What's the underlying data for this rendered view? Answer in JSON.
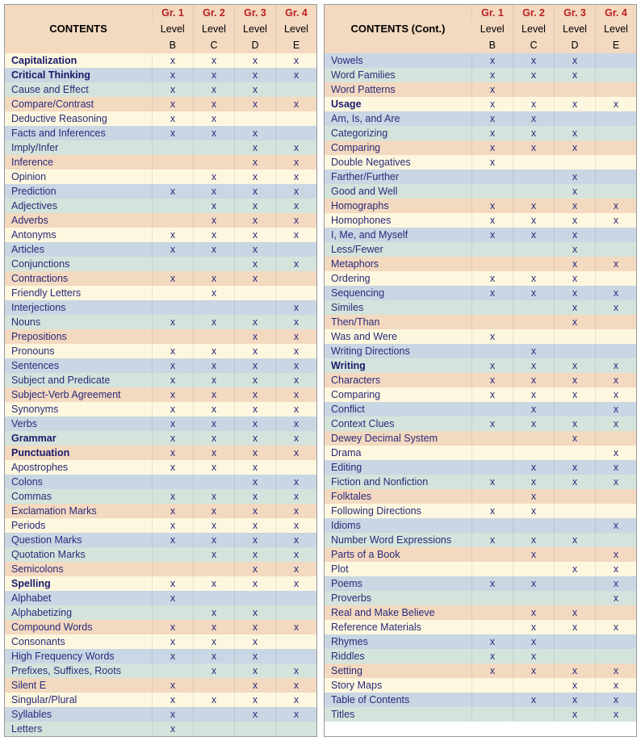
{
  "colors": {
    "header_bg": "#f3d9c0",
    "stripes": [
      "#fdf7df",
      "#c9d6e3",
      "#d4e4dc",
      "#f3d9c0"
    ],
    "text": "#2a2a7a",
    "gr_text": "#b82020"
  },
  "columns": [
    {
      "gr": "Gr. 1",
      "lvl_line1": "Level",
      "lvl_line2": "B"
    },
    {
      "gr": "Gr. 2",
      "lvl_line1": "Level",
      "lvl_line2": "C"
    },
    {
      "gr": "Gr. 3",
      "lvl_line1": "Level",
      "lvl_line2": "D"
    },
    {
      "gr": "Gr. 4",
      "lvl_line1": "Level",
      "lvl_line2": "E"
    }
  ],
  "title_left": "CONTENTS",
  "title_right": "CONTENTS  (Cont.)",
  "left": [
    {
      "label": "Capitalization",
      "bold": true,
      "marks": [
        "x",
        "x",
        "x",
        "x"
      ]
    },
    {
      "label": "Critical Thinking",
      "bold": true,
      "marks": [
        "x",
        "x",
        "x",
        "x"
      ]
    },
    {
      "label": "Cause and Effect",
      "marks": [
        "x",
        "x",
        "x",
        ""
      ]
    },
    {
      "label": "Compare/Contrast",
      "marks": [
        "x",
        "x",
        "x",
        "x"
      ]
    },
    {
      "label": "Deductive Reasoning",
      "marks": [
        "x",
        "x",
        "",
        ""
      ]
    },
    {
      "label": "Facts and Inferences",
      "marks": [
        "x",
        "x",
        "x",
        ""
      ]
    },
    {
      "label": "Imply/Infer",
      "marks": [
        "",
        "",
        "x",
        "x"
      ]
    },
    {
      "label": "Inference",
      "marks": [
        "",
        "",
        "x",
        "x"
      ]
    },
    {
      "label": "Opinion",
      "marks": [
        "",
        "x",
        "x",
        "x"
      ]
    },
    {
      "label": "Prediction",
      "marks": [
        "x",
        "x",
        "x",
        "x"
      ]
    },
    {
      "label": "Adjectives",
      "marks": [
        "",
        "x",
        "x",
        "x"
      ]
    },
    {
      "label": "Adverbs",
      "marks": [
        "",
        "x",
        "x",
        "x"
      ]
    },
    {
      "label": "Antonyms",
      "marks": [
        "x",
        "x",
        "x",
        "x"
      ]
    },
    {
      "label": "Articles",
      "marks": [
        "x",
        "x",
        "x",
        ""
      ]
    },
    {
      "label": "Conjunctions",
      "marks": [
        "",
        "",
        "x",
        "x"
      ]
    },
    {
      "label": "Contractions",
      "marks": [
        "x",
        "x",
        "x",
        ""
      ]
    },
    {
      "label": "Friendly Letters",
      "marks": [
        "",
        "x",
        "",
        ""
      ]
    },
    {
      "label": "Interjections",
      "marks": [
        "",
        "",
        "",
        "x"
      ]
    },
    {
      "label": "Nouns",
      "marks": [
        "x",
        "x",
        "x",
        "x"
      ]
    },
    {
      "label": "Prepositions",
      "marks": [
        "",
        "",
        "x",
        "x"
      ]
    },
    {
      "label": "Pronouns",
      "marks": [
        "x",
        "x",
        "x",
        "x"
      ]
    },
    {
      "label": "Sentences",
      "marks": [
        "x",
        "x",
        "x",
        "x"
      ]
    },
    {
      "label": "Subject and Predicate",
      "marks": [
        "x",
        "x",
        "x",
        "x"
      ]
    },
    {
      "label": "Subject-Verb Agreement",
      "marks": [
        "x",
        "x",
        "x",
        "x"
      ]
    },
    {
      "label": "Synonyms",
      "marks": [
        "x",
        "x",
        "x",
        "x"
      ]
    },
    {
      "label": "Verbs",
      "marks": [
        "x",
        "x",
        "x",
        "x"
      ]
    },
    {
      "label": "Grammar",
      "bold": true,
      "marks": [
        "x",
        "x",
        "x",
        "x"
      ]
    },
    {
      "label": "Punctuation",
      "bold": true,
      "marks": [
        "x",
        "x",
        "x",
        "x"
      ]
    },
    {
      "label": "Apostrophes",
      "marks": [
        "x",
        "x",
        "x",
        ""
      ]
    },
    {
      "label": "Colons",
      "marks": [
        "",
        "",
        "x",
        "x"
      ]
    },
    {
      "label": "Commas",
      "marks": [
        "x",
        "x",
        "x",
        "x"
      ]
    },
    {
      "label": "Exclamation Marks",
      "marks": [
        "x",
        "x",
        "x",
        "x"
      ]
    },
    {
      "label": "Periods",
      "marks": [
        "x",
        "x",
        "x",
        "x"
      ]
    },
    {
      "label": "Question Marks",
      "marks": [
        "x",
        "x",
        "x",
        "x"
      ]
    },
    {
      "label": "Quotation Marks",
      "marks": [
        "",
        "x",
        "x",
        "x"
      ]
    },
    {
      "label": "Semicolons",
      "marks": [
        "",
        "",
        "x",
        "x"
      ]
    },
    {
      "label": "Spelling",
      "bold": true,
      "marks": [
        "x",
        "x",
        "x",
        "x"
      ]
    },
    {
      "label": "Alphabet",
      "marks": [
        "x",
        "",
        "",
        ""
      ]
    },
    {
      "label": "Alphabetizing",
      "marks": [
        "",
        "x",
        "x",
        ""
      ]
    },
    {
      "label": "Compound Words",
      "marks": [
        "x",
        "x",
        "x",
        "x"
      ]
    },
    {
      "label": "Consonants",
      "marks": [
        "x",
        "x",
        "x",
        ""
      ]
    },
    {
      "label": "High Frequency Words",
      "marks": [
        "x",
        "x",
        "x",
        ""
      ]
    },
    {
      "label": "Prefixes, Suffixes, Roots",
      "marks": [
        "",
        "x",
        "x",
        "x"
      ]
    },
    {
      "label": "Silent E",
      "marks": [
        "x",
        "",
        "x",
        "x"
      ]
    },
    {
      "label": "Singular/Plural",
      "marks": [
        "x",
        "x",
        "x",
        "x"
      ]
    },
    {
      "label": "Syllables",
      "marks": [
        "x",
        "",
        "x",
        "x"
      ]
    },
    {
      "label": "Letters",
      "marks": [
        "x",
        "",
        "",
        ""
      ]
    }
  ],
  "right": [
    {
      "label": "Vowels",
      "marks": [
        "x",
        "x",
        "x",
        ""
      ]
    },
    {
      "label": "Word Families",
      "marks": [
        "x",
        "x",
        "x",
        ""
      ]
    },
    {
      "label": "Word Patterns",
      "marks": [
        "x",
        "",
        "",
        ""
      ]
    },
    {
      "label": "Usage",
      "bold": true,
      "marks": [
        "x",
        "x",
        "x",
        "x"
      ]
    },
    {
      "label": "Am, Is, and Are",
      "marks": [
        "x",
        "x",
        "",
        ""
      ]
    },
    {
      "label": "Categorizing",
      "marks": [
        "x",
        "x",
        "x",
        ""
      ]
    },
    {
      "label": "Comparing",
      "marks": [
        "x",
        "x",
        "x",
        ""
      ]
    },
    {
      "label": "Double Negatives",
      "marks": [
        "x",
        "",
        "",
        ""
      ]
    },
    {
      "label": "Farther/Further",
      "marks": [
        "",
        "",
        "x",
        ""
      ]
    },
    {
      "label": "Good and Well",
      "marks": [
        "",
        "",
        "x",
        ""
      ]
    },
    {
      "label": "Homographs",
      "marks": [
        "x",
        "x",
        "x",
        "x"
      ]
    },
    {
      "label": "Homophones",
      "marks": [
        "x",
        "x",
        "x",
        "x"
      ]
    },
    {
      "label": "I, Me, and Myself",
      "marks": [
        "x",
        "x",
        "x",
        ""
      ]
    },
    {
      "label": "Less/Fewer",
      "marks": [
        "",
        "",
        "x",
        ""
      ]
    },
    {
      "label": "Metaphors",
      "marks": [
        "",
        "",
        "x",
        "x"
      ]
    },
    {
      "label": "Ordering",
      "marks": [
        "x",
        "x",
        "x",
        ""
      ]
    },
    {
      "label": "Sequencing",
      "marks": [
        "x",
        "x",
        "x",
        "x"
      ]
    },
    {
      "label": "Similes",
      "marks": [
        "",
        "",
        "x",
        "x"
      ]
    },
    {
      "label": "Then/Than",
      "marks": [
        "",
        "",
        "x",
        ""
      ]
    },
    {
      "label": "Was and Were",
      "marks": [
        "x",
        "",
        "",
        ""
      ]
    },
    {
      "label": "Writing Directions",
      "marks": [
        "",
        "x",
        "",
        ""
      ]
    },
    {
      "label": "Writing",
      "bold": true,
      "marks": [
        "x",
        "x",
        "x",
        "x"
      ]
    },
    {
      "label": "Characters",
      "marks": [
        "x",
        "x",
        "x",
        "x"
      ]
    },
    {
      "label": "Comparing",
      "marks": [
        "x",
        "x",
        "x",
        "x"
      ]
    },
    {
      "label": "Conflict",
      "marks": [
        "",
        "x",
        "",
        "x"
      ]
    },
    {
      "label": "Context Clues",
      "marks": [
        "x",
        "x",
        "x",
        "x"
      ]
    },
    {
      "label": "Dewey Decimal System",
      "marks": [
        "",
        "",
        "x",
        ""
      ]
    },
    {
      "label": "Drama",
      "marks": [
        "",
        "",
        "",
        "x"
      ]
    },
    {
      "label": "Editing",
      "marks": [
        "",
        "x",
        "x",
        "x"
      ]
    },
    {
      "label": "Fiction and Nonfiction",
      "marks": [
        "x",
        "x",
        "x",
        "x"
      ]
    },
    {
      "label": "Folktales",
      "marks": [
        "",
        "x",
        "",
        ""
      ]
    },
    {
      "label": "Following Directions",
      "marks": [
        "x",
        "x",
        "",
        ""
      ]
    },
    {
      "label": "Idioms",
      "marks": [
        "",
        "",
        "",
        "x"
      ]
    },
    {
      "label": "Number Word Expressions",
      "marks": [
        "x",
        "x",
        "x",
        ""
      ]
    },
    {
      "label": "Parts of a Book",
      "marks": [
        "",
        "x",
        "",
        "x"
      ]
    },
    {
      "label": "Plot",
      "marks": [
        "",
        "",
        "x",
        "x"
      ]
    },
    {
      "label": "Poems",
      "marks": [
        "x",
        "x",
        "",
        "x"
      ]
    },
    {
      "label": "Proverbs",
      "marks": [
        "",
        "",
        "",
        "x"
      ]
    },
    {
      "label": "Real and Make Believe",
      "marks": [
        "",
        "x",
        "x",
        ""
      ]
    },
    {
      "label": "Reference Materials",
      "marks": [
        "",
        "x",
        "x",
        "x"
      ]
    },
    {
      "label": "Rhymes",
      "marks": [
        "x",
        "x",
        "",
        ""
      ]
    },
    {
      "label": "Riddles",
      "marks": [
        "x",
        "x",
        "",
        ""
      ]
    },
    {
      "label": "Setting",
      "marks": [
        "x",
        "x",
        "x",
        "x"
      ]
    },
    {
      "label": "Story Maps",
      "marks": [
        "",
        "",
        "x",
        "x"
      ]
    },
    {
      "label": "Table of Contents",
      "marks": [
        "",
        "x",
        "x",
        "x"
      ]
    },
    {
      "label": "Titles",
      "marks": [
        "",
        "",
        "x",
        "x"
      ]
    }
  ]
}
